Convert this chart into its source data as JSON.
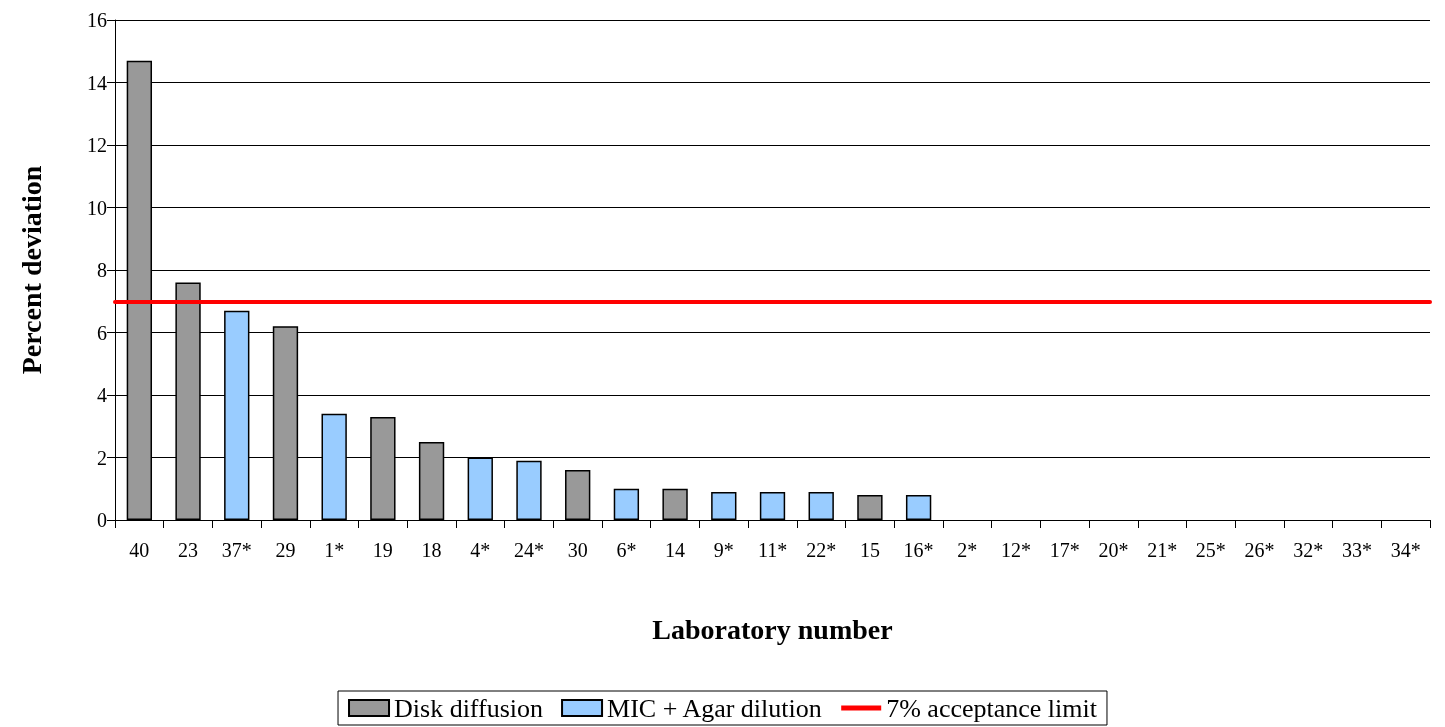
{
  "chart_data": {
    "type": "bar",
    "xlabel": "Laboratory number",
    "ylabel": "Percent deviation",
    "categories": [
      "40",
      "23",
      "37*",
      "29",
      "1*",
      "19",
      "18",
      "4*",
      "24*",
      "30",
      "6*",
      "14",
      "9*",
      "11*",
      "22*",
      "15",
      "16*",
      "2*",
      "12*",
      "17*",
      "20*",
      "21*",
      "25*",
      "26*",
      "32*",
      "33*",
      "34*"
    ],
    "series": [
      {
        "name": "Disk diffusion",
        "color": "#999999",
        "values": [
          14.7,
          7.6,
          null,
          6.2,
          null,
          3.3,
          2.5,
          null,
          null,
          1.6,
          null,
          1.0,
          null,
          null,
          null,
          0.8,
          null,
          null,
          null,
          null,
          null,
          null,
          null,
          null,
          null,
          null,
          null
        ]
      },
      {
        "name": "MIC + Agar dilution",
        "color": "#99ccff",
        "values": [
          null,
          null,
          6.7,
          null,
          3.4,
          null,
          null,
          2.0,
          1.9,
          null,
          1.0,
          null,
          0.9,
          0.9,
          0.9,
          null,
          0.8,
          null,
          null,
          null,
          null,
          null,
          null,
          null,
          null,
          null,
          null
        ]
      }
    ],
    "ref_lines": [
      {
        "axis": "y",
        "value": 7,
        "label": "7% acceptance limit",
        "color": "#ff0000"
      }
    ],
    "ylim": [
      0,
      16
    ],
    "yticks": [
      0,
      2,
      4,
      6,
      8,
      10,
      12,
      14,
      16
    ],
    "grid": "y",
    "legend": "bottom"
  }
}
